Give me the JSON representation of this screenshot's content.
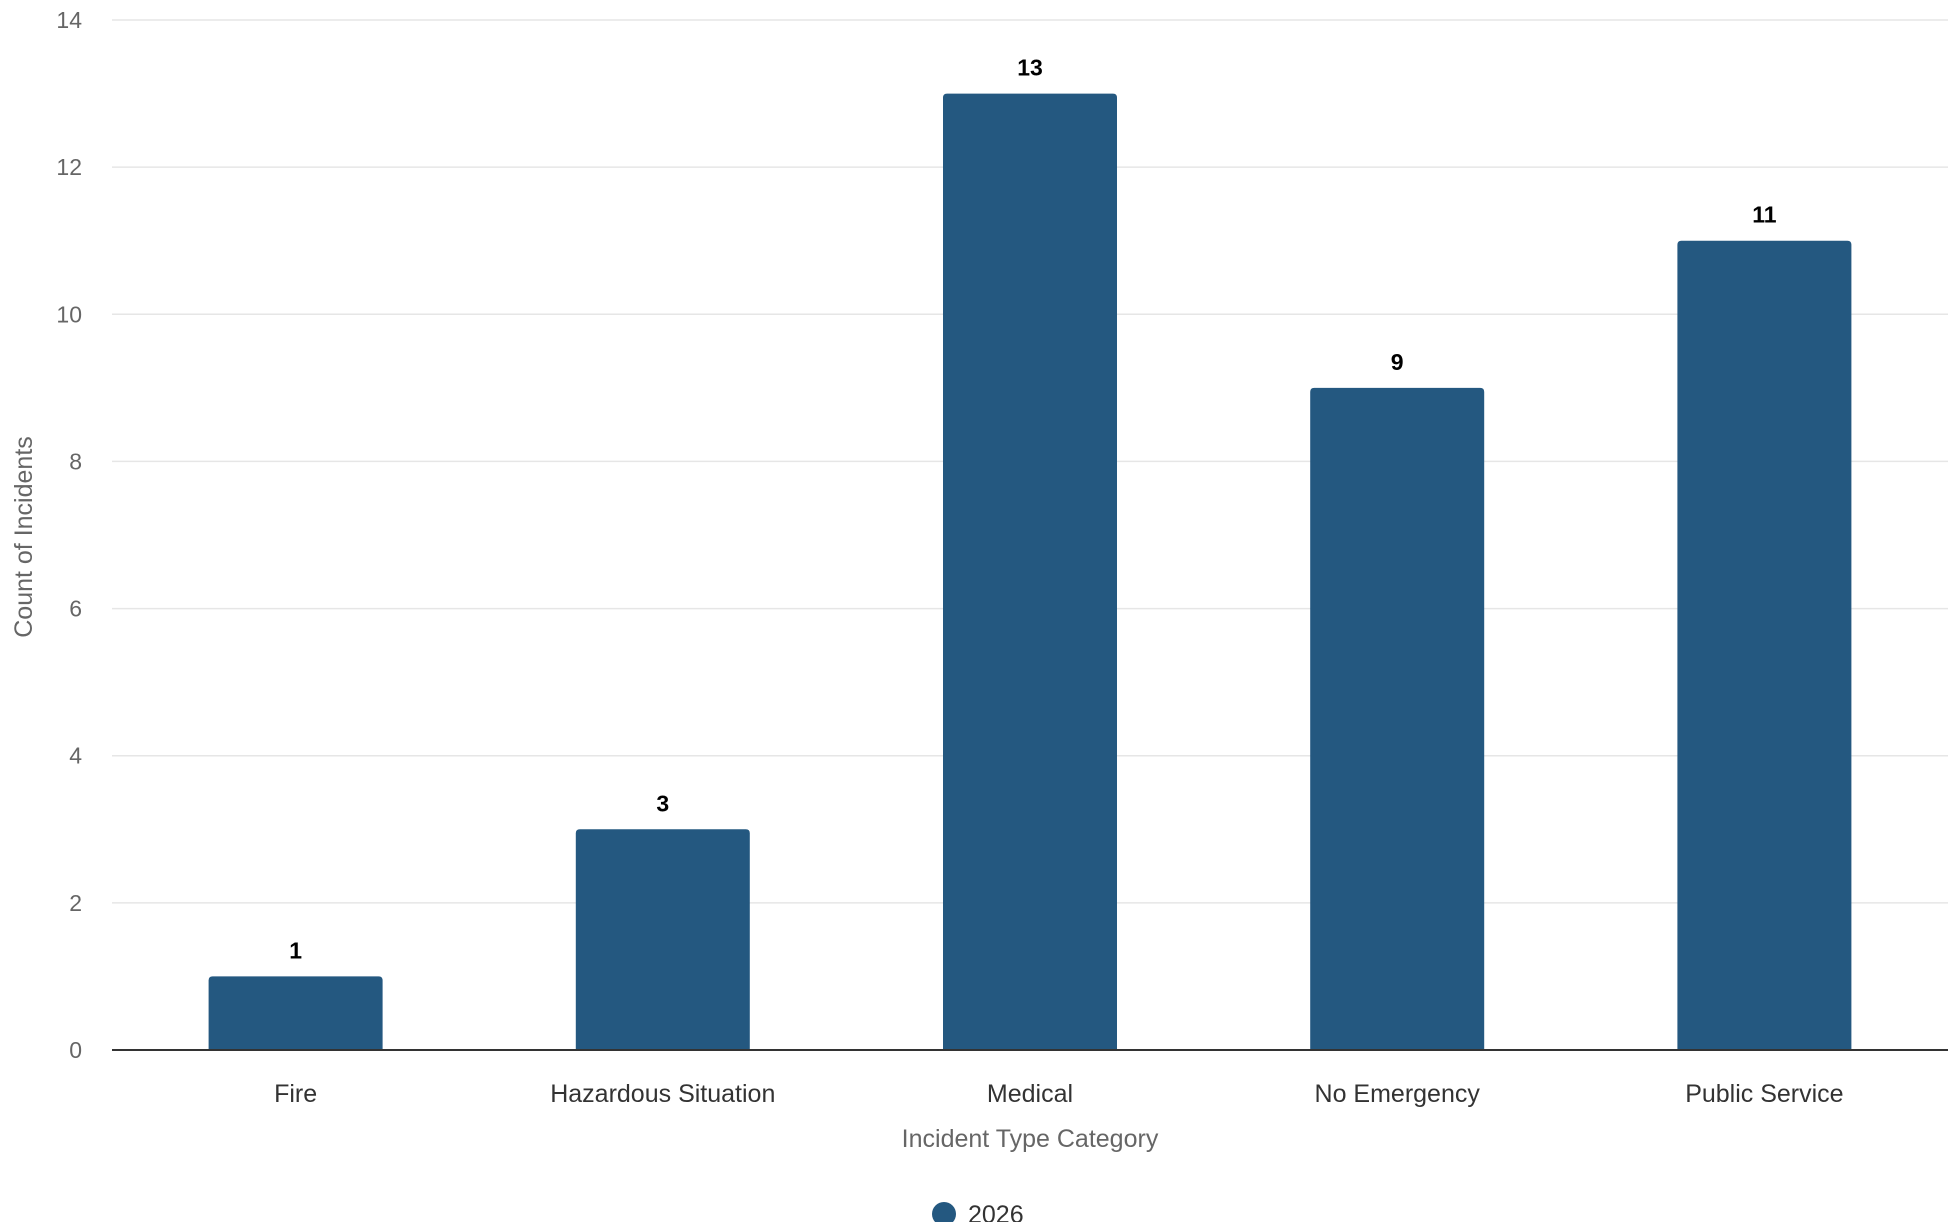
{
  "chart_data": {
    "type": "bar",
    "title": "",
    "xlabel": "Incident Type Category",
    "ylabel": "Count of Incidents",
    "categories": [
      "Fire",
      "Hazardous Situation",
      "Medical",
      "No Emergency",
      "Public Service"
    ],
    "series": [
      {
        "name": "2026",
        "values": [
          1,
          3,
          13,
          9,
          11
        ],
        "color": "#245880"
      }
    ],
    "ylim": [
      0,
      14
    ],
    "yticks": [
      0,
      2,
      4,
      6,
      8,
      10,
      12,
      14
    ],
    "grid": true,
    "legend": "bottom-center",
    "data_labels": true
  }
}
